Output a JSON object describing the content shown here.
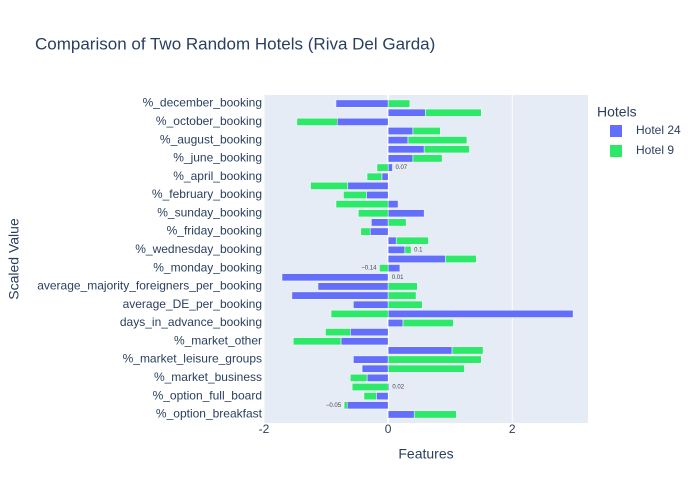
{
  "chart_data": {
    "type": "bar",
    "orientation": "horizontal",
    "barmode": "relative",
    "title": "Comparison of Two Random Hotels (Riva Del Garda)",
    "x_label": "Features",
    "y_label": "Scaled Value",
    "legend_title": "Hotels",
    "legend_position": "right",
    "categories": [
      "%_december_booking",
      null,
      "%_october_booking",
      null,
      "%_august_booking",
      null,
      "%_june_booking",
      null,
      "%_april_booking",
      null,
      "%_february_booking",
      null,
      "%_sunday_booking",
      null,
      "%_friday_booking",
      null,
      "%_wednesday_booking",
      null,
      "%_monday_booking",
      null,
      "average_majority_foreigners_per_booking",
      null,
      "average_DE_per_booking",
      null,
      "days_in_advance_booking",
      null,
      "%_market_other",
      null,
      "%_market_leisure_groups",
      null,
      "%_market_business",
      null,
      "%_option_full_board",
      null,
      "%_option_breakfast"
    ],
    "series": [
      {
        "name": "Hotel 24",
        "color": "#636efa",
        "values": [
          -0.84,
          0.6,
          -0.82,
          0.4,
          0.32,
          0.58,
          0.4,
          0.07,
          -0.1,
          -0.65,
          -0.35,
          0.16,
          0.58,
          -0.27,
          -0.29,
          0.13,
          0.27,
          0.92,
          0.19,
          -1.71,
          -1.13,
          -1.55,
          -0.56,
          2.98,
          0.24,
          -0.61,
          -0.76,
          1.03,
          -0.56,
          -0.42,
          -0.34,
          0.02,
          -0.19,
          -0.66,
          0.42
        ],
        "value_labels": [
          null,
          null,
          null,
          null,
          null,
          null,
          null,
          "0.07",
          null,
          null,
          null,
          null,
          null,
          null,
          null,
          null,
          null,
          null,
          null,
          null,
          null,
          null,
          null,
          null,
          null,
          null,
          null,
          null,
          null,
          null,
          null,
          "0.02",
          null,
          null,
          null
        ]
      },
      {
        "name": "Hotel 9",
        "color": "#2ee86a",
        "values": [
          0.35,
          0.9,
          -0.65,
          0.44,
          0.95,
          0.73,
          0.47,
          -0.18,
          -0.24,
          -0.6,
          -0.37,
          -0.84,
          -0.48,
          0.29,
          -0.15,
          0.52,
          0.1,
          0.5,
          -0.14,
          0.01,
          0.47,
          0.45,
          0.55,
          -0.92,
          0.81,
          -0.4,
          -0.77,
          0.5,
          1.5,
          1.23,
          -0.27,
          -0.58,
          -0.2,
          -0.05,
          0.68
        ],
        "value_labels": [
          null,
          null,
          null,
          null,
          null,
          null,
          null,
          null,
          null,
          null,
          null,
          null,
          null,
          null,
          null,
          null,
          "0.1",
          null,
          "−0.14",
          "0.01",
          null,
          null,
          null,
          null,
          null,
          null,
          null,
          null,
          null,
          null,
          null,
          null,
          null,
          "−0.05",
          null
        ]
      }
    ],
    "xlim": [
      -2,
      3.22
    ],
    "xticks": [
      -2,
      0,
      2
    ],
    "grid": true
  }
}
